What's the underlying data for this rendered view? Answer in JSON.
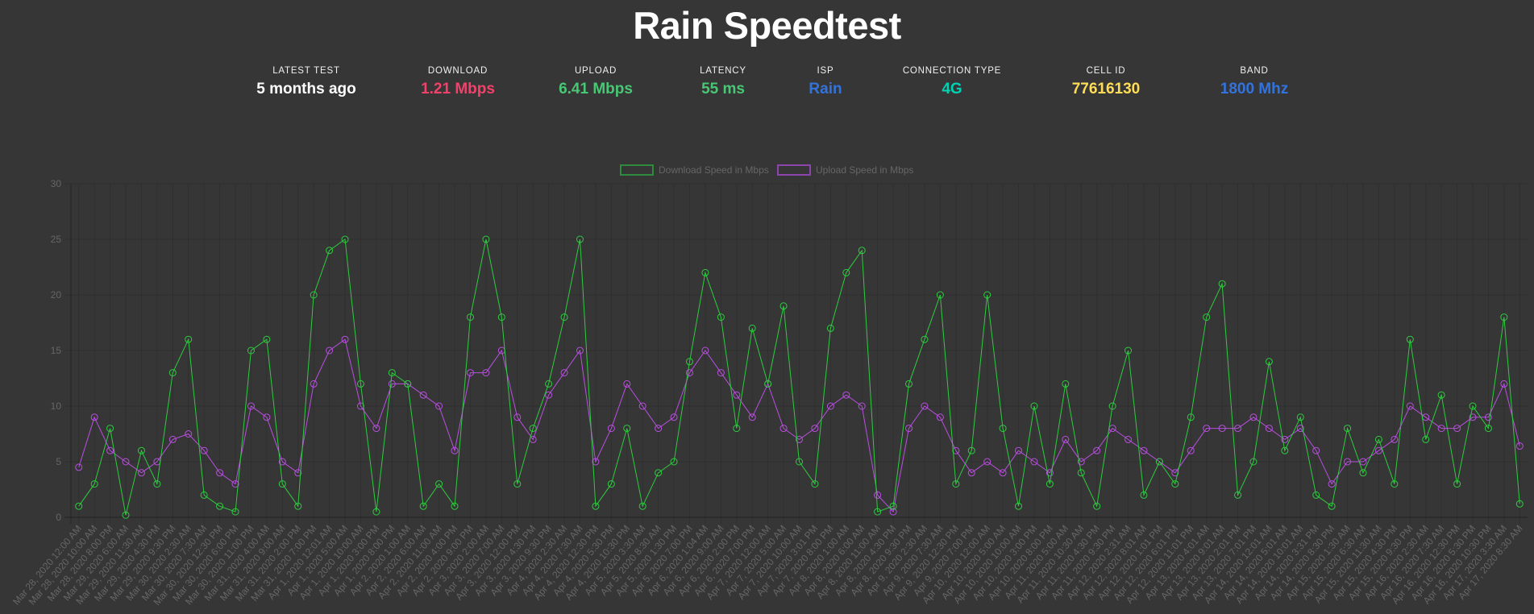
{
  "header": {
    "title": "Rain Speedtest"
  },
  "stats": [
    {
      "label": "Latest Test",
      "value": "5 months ago",
      "color": "#ffffff"
    },
    {
      "label": "Download",
      "value": "1.21 Mbps",
      "color": "#f2416b"
    },
    {
      "label": "Upload",
      "value": "6.41 Mbps",
      "color": "#48c774"
    },
    {
      "label": "Latency",
      "value": "55 ms",
      "color": "#48c774"
    },
    {
      "label": "ISP",
      "value": "Rain",
      "color": "#3273dc"
    },
    {
      "label": "Connection Type",
      "value": "4G",
      "color": "#00d1b2"
    },
    {
      "label": "Cell ID",
      "value": "77616130",
      "color": "#ffdd57"
    },
    {
      "label": "Band",
      "value": "1800 Mhz",
      "color": "#3273dc"
    }
  ],
  "chart_data": {
    "type": "line",
    "title": "",
    "xlabel": "",
    "ylabel": "",
    "ylim": [
      0,
      30
    ],
    "yticks": [
      0,
      5,
      10,
      15,
      20,
      25,
      30
    ],
    "grid": true,
    "legend_position": "top",
    "x": [
      "Mar 28, 2020 12:00 AM",
      "Mar 28, 2020 10:00 AM",
      "Mar 28, 2020 8:00 PM",
      "Mar 29, 2020 6:00 AM",
      "Mar 29, 2020 11:30 AM",
      "Mar 29, 2020 4:30 PM",
      "Mar 29, 2020 9:30 PM",
      "Mar 30, 2020 2:30 AM",
      "Mar 30, 2020 7:30 AM",
      "Mar 30, 2020 12:30 PM",
      "Mar 30, 2020 6:00 PM",
      "Mar 30, 2020 11:00 PM",
      "Mar 31, 2020 4:00 AM",
      "Mar 31, 2020 9:00 AM",
      "Mar 31, 2020 2:00 PM",
      "Mar 31, 2020 7:00 PM",
      "Apr 1, 2020 12:01 AM",
      "Apr 1, 2020 5:00 AM",
      "Apr 1, 2020 10:00 AM",
      "Apr 1, 2020 3:00 PM",
      "Apr 1, 2020 8:00 PM",
      "Apr 2, 2020 1:00 AM",
      "Apr 2, 2020 6:00 AM",
      "Apr 2, 2020 11:00 AM",
      "Apr 2, 2020 4:00 PM",
      "Apr 2, 2020 9:00 PM",
      "Apr 3, 2020 2:00 AM",
      "Apr 3, 2020 7:00 AM",
      "Apr 3, 2020 12:00 PM",
      "Apr 3, 2020 4:30 PM",
      "Apr 3, 2020 9:30 PM",
      "Apr 4, 2020 2:30 AM",
      "Apr 4, 2020 7:30 AM",
      "Apr 4, 2020 12:30 PM",
      "Apr 4, 2020 5:30 PM",
      "Apr 4, 2020 10:30 PM",
      "Apr 5, 2020 3:30 AM",
      "Apr 5, 2020 8:30 AM",
      "Apr 5, 2020 1:30 PM",
      "Apr 5, 2020 7:00 PM",
      "Apr 6, 2020 1:04 AM",
      "Apr 6, 2020 9:00 AM",
      "Apr 6, 2020 2:00 PM",
      "Apr 6, 2020 7:00 PM",
      "Apr 7, 2020 12:00 AM",
      "Apr 7, 2020 5:00 AM",
      "Apr 7, 2020 10:00 AM",
      "Apr 7, 2020 3:01 PM",
      "Apr 7, 2020 8:00 PM",
      "Apr 8, 2020 1:00 AM",
      "Apr 8, 2020 6:00 AM",
      "Apr 8, 2020 11:00 AM",
      "Apr 8, 2020 4:30 PM",
      "Apr 8, 2020 9:30 PM",
      "Apr 9, 2020 2:30 AM",
      "Apr 9, 2020 7:30 AM",
      "Apr 9, 2020 12:30 PM",
      "Apr 9, 2020 7:00 PM",
      "Apr 10, 2020 12:00 AM",
      "Apr 10, 2020 5:00 AM",
      "Apr 10, 2020 10:00 AM",
      "Apr 10, 2020 3:00 PM",
      "Apr 10, 2020 8:00 PM",
      "Apr 11, 2020 5:00 AM",
      "Apr 11, 2020 10:30 AM",
      "Apr 11, 2020 4:30 PM",
      "Apr 11, 2020 9:30 PM",
      "Apr 12, 2020 2:31 AM",
      "Apr 12, 2020 8:01 AM",
      "Apr 12, 2020 1:01 PM",
      "Apr 12, 2020 6:01 PM",
      "Apr 12, 2020 11:01 PM",
      "Apr 13, 2020 4:01 AM",
      "Apr 13, 2020 9:01 AM",
      "Apr 13, 2020 2:01 PM",
      "Apr 13, 2020 7:01 PM",
      "Apr 14, 2020 12:01 AM",
      "Apr 14, 2020 5:01 AM",
      "Apr 14, 2020 10:01 AM",
      "Apr 14, 2020 3:31 PM",
      "Apr 14, 2020 8:30 PM",
      "Apr 15, 2020 1:30 AM",
      "Apr 15, 2020 6:30 AM",
      "Apr 15, 2020 11:30 AM",
      "Apr 15, 2020 4:30 PM",
      "Apr 15, 2020 9:30 PM",
      "Apr 16, 2020 2:30 AM",
      "Apr 16, 2020 7:30 AM",
      "Apr 16, 2020 12:30 PM",
      "Apr 16, 2020 5:30 PM",
      "Apr 16, 2020 10:30 PM",
      "Apr 17, 2020 3:30 AM",
      "Apr 17, 2020 8:30 AM"
    ],
    "series": [
      {
        "name": "Download Speed in Mbps",
        "color": "#2ecc40",
        "values": [
          1,
          3,
          8,
          0.2,
          6,
          3,
          13,
          16,
          2,
          1,
          0.5,
          15,
          16,
          3,
          1,
          20,
          24,
          25,
          12,
          0.5,
          13,
          12,
          1,
          3,
          1,
          18,
          25,
          18,
          3,
          8,
          12,
          18,
          25,
          1,
          3,
          8,
          1,
          4,
          5,
          14,
          22,
          18,
          8,
          17,
          12,
          19,
          5,
          3,
          17,
          22,
          24,
          0.5,
          1,
          12,
          16,
          20,
          3,
          6,
          20,
          8,
          1,
          10,
          3,
          12,
          4,
          1,
          10,
          15,
          2,
          5,
          3,
          9,
          18,
          21,
          2,
          5,
          14,
          6,
          9,
          2,
          1,
          8,
          4,
          7,
          3,
          16,
          7,
          11,
          3,
          10,
          8,
          18,
          1.21
        ]
      },
      {
        "name": "Upload Speed in Mbps",
        "color": "#b94fe0",
        "values": [
          4.5,
          9,
          6,
          5,
          4,
          5,
          7,
          7.5,
          6,
          4,
          3,
          10,
          9,
          5,
          4,
          12,
          15,
          16,
          10,
          8,
          12,
          12,
          11,
          10,
          6,
          13,
          13,
          15,
          9,
          7,
          11,
          13,
          15,
          5,
          8,
          12,
          10,
          8,
          9,
          13,
          15,
          13,
          11,
          9,
          12,
          8,
          7,
          8,
          10,
          11,
          10,
          2,
          0.5,
          8,
          10,
          9,
          6,
          4,
          5,
          4,
          6,
          5,
          4,
          7,
          5,
          6,
          8,
          7,
          6,
          5,
          4,
          6,
          8,
          8,
          8,
          9,
          8,
          7,
          8,
          6,
          3,
          5,
          5,
          6,
          7,
          10,
          9,
          8,
          8,
          9,
          9,
          12,
          6.41
        ]
      }
    ]
  }
}
